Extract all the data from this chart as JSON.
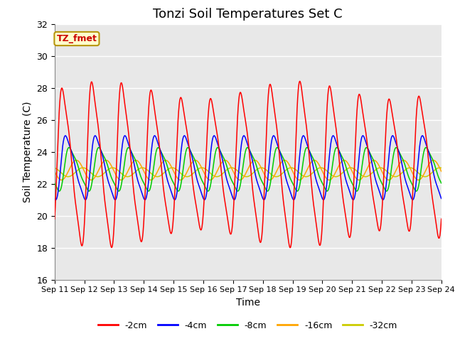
{
  "title": "Tonzi Soil Temperatures Set C",
  "xlabel": "Time",
  "ylabel": "Soil Temperature (C)",
  "ylim": [
    16,
    32
  ],
  "tick_labels": [
    "Sep 11",
    "Sep 12",
    "Sep 13",
    "Sep 14",
    "Sep 15",
    "Sep 16",
    "Sep 17",
    "Sep 18",
    "Sep 19",
    "Sep 20",
    "Sep 21",
    "Sep 22",
    "Sep 23",
    "Sep 24"
  ],
  "series_labels": [
    "-2cm",
    "-4cm",
    "-8cm",
    "-16cm",
    "-32cm"
  ],
  "series_colors": [
    "#ff0000",
    "#0000ff",
    "#00cc00",
    "#ffa500",
    "#cccc00"
  ],
  "annotation_text": "TZ_fmet",
  "annotation_bg": "#ffffcc",
  "annotation_border": "#b8960c",
  "plot_bg": "#e8e8e8",
  "grid_color": "#ffffff",
  "title_fontsize": 13,
  "axis_label_fontsize": 10,
  "tick_fontsize": 8,
  "legend_fontsize": 9,
  "linewidth": 1.1,
  "n_days": 13,
  "pts_per_day": 144
}
